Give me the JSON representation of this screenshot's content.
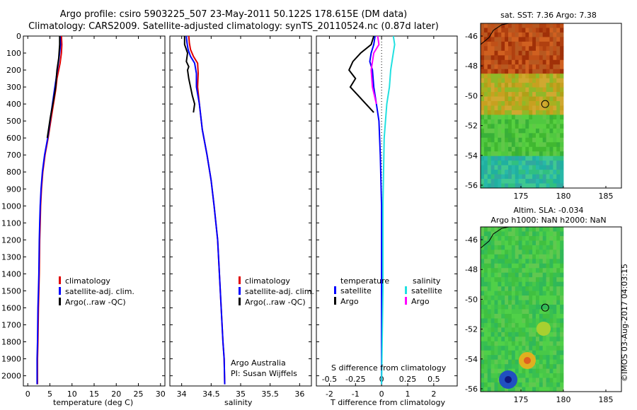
{
  "header": {
    "title_line1": "Argo profile: csiro 5903225_507 23-May-2011 50.122S 178.615E (DM data)",
    "title_line2": "Climatology: CARS2009. Satellite-adjusted climatology: synTS_20110524.nc (0.87d later)"
  },
  "colors": {
    "climatology": "#e00000",
    "satellite": "#0000ff",
    "argo": "#000000",
    "sat_salinity": "#20e0e0",
    "argo_salinity": "#ff00ff"
  },
  "depth_axis": {
    "ticks": [
      0,
      100,
      200,
      300,
      400,
      500,
      600,
      700,
      800,
      900,
      1000,
      1100,
      1200,
      1300,
      1400,
      1500,
      1600,
      1700,
      1800,
      1900,
      2000
    ],
    "max": 2060
  },
  "chart_data": [
    {
      "type": "line",
      "xlabel": "temperature (deg C)",
      "xlim": [
        -1,
        31
      ],
      "xticks": [
        0,
        5,
        10,
        15,
        20,
        25,
        30
      ],
      "ylim": [
        0,
        2060
      ],
      "legend": [
        "climatology",
        "satellite-adj. clim.",
        "Argo(..raw -QC)"
      ],
      "series": [
        {
          "name": "climatology",
          "color": "#e00000",
          "x": [
            7.6,
            7.7,
            7.6,
            7.3,
            6.6,
            6.3,
            5.5,
            4.6,
            3.9,
            3.4,
            3.1,
            2.9,
            2.8,
            2.7,
            2.6,
            2.5,
            2.4,
            2.3,
            2.2,
            2.2
          ],
          "y": [
            0,
            50,
            100,
            160,
            250,
            320,
            450,
            600,
            700,
            800,
            900,
            1000,
            1100,
            1200,
            1400,
            1500,
            1600,
            1800,
            1900,
            2050
          ]
        },
        {
          "name": "satellite-adj. clim.",
          "color": "#0000ff",
          "x": [
            7.3,
            7.4,
            7.2,
            6.9,
            6.4,
            6.0,
            5.3,
            4.5,
            3.8,
            3.3,
            3.0,
            2.8,
            2.7,
            2.6,
            2.5,
            2.4,
            2.3,
            2.2,
            2.1,
            2.1
          ],
          "y": [
            0,
            50,
            100,
            160,
            250,
            320,
            450,
            600,
            700,
            800,
            900,
            1000,
            1100,
            1200,
            1400,
            1500,
            1600,
            1800,
            1900,
            2050
          ]
        },
        {
          "name": "Argo(..raw -QC)",
          "color": "#000000",
          "x": [
            7.2,
            7.2,
            7.0,
            6.6,
            6.3,
            5.8,
            5.1,
            4.4
          ],
          "y": [
            0,
            50,
            130,
            200,
            300,
            380,
            480,
            600
          ]
        }
      ]
    },
    {
      "type": "line",
      "xlabel": "salinity",
      "xlim": [
        33.8,
        36.2
      ],
      "xticks": [
        34,
        34.5,
        35,
        35.5,
        36
      ],
      "ylim": [
        0,
        2060
      ],
      "legend": [
        "climatology",
        "satellite-adj. clim.",
        "Argo(..raw -QC)"
      ],
      "annotations": [
        "Argo Australia",
        "PI: Susan Wijffels"
      ],
      "series": [
        {
          "name": "climatology",
          "color": "#e00000",
          "x": [
            34.12,
            34.13,
            34.15,
            34.2,
            34.27,
            34.28,
            34.27,
            34.3,
            34.35,
            34.43,
            34.5,
            34.55,
            34.58,
            34.61,
            34.64,
            34.67,
            34.7,
            34.72,
            34.73
          ],
          "y": [
            0,
            40,
            80,
            120,
            160,
            220,
            300,
            400,
            550,
            700,
            850,
            1000,
            1100,
            1200,
            1400,
            1600,
            1800,
            1900,
            2050
          ]
        },
        {
          "name": "satellite-adj. clim.",
          "color": "#0000ff",
          "x": [
            34.08,
            34.09,
            34.11,
            34.15,
            34.22,
            34.25,
            34.25,
            34.3,
            34.35,
            34.43,
            34.5,
            34.55,
            34.58,
            34.61,
            34.64,
            34.67,
            34.7,
            34.72,
            34.73
          ],
          "y": [
            0,
            40,
            80,
            120,
            160,
            220,
            300,
            400,
            550,
            700,
            850,
            1000,
            1100,
            1200,
            1400,
            1600,
            1800,
            1900,
            2050
          ]
        },
        {
          "name": "Argo(..raw -QC)",
          "color": "#000000",
          "x": [
            34.05,
            34.05,
            34.1,
            34.08,
            34.12,
            34.1,
            34.12,
            34.15,
            34.18,
            34.22,
            34.2
          ],
          "y": [
            0,
            50,
            100,
            150,
            180,
            200,
            250,
            300,
            350,
            400,
            450
          ]
        }
      ]
    },
    {
      "type": "line",
      "xlabel": "T difference from climatology",
      "xlabel_top": "S difference from climatology",
      "xlim": [
        -2.5,
        2.9
      ],
      "xticks": [
        -2,
        -1,
        0,
        1,
        2
      ],
      "xticks_top": [
        "-0.5",
        "-0.25",
        "0",
        "0.25",
        "0.5"
      ],
      "ylim": [
        0,
        2060
      ],
      "legend_left_title": "temperature",
      "legend_right_title": "salinity",
      "legend": [
        "satellite",
        "Argo",
        "satellite",
        "Argo"
      ],
      "series": [
        {
          "name": "satellite",
          "color": "#0000ff",
          "x": [
            -0.25,
            -0.3,
            -0.4,
            -0.45,
            -0.35,
            -0.3,
            -0.2,
            -0.1,
            -0.05,
            0,
            0
          ],
          "y": [
            0,
            50,
            100,
            150,
            200,
            300,
            400,
            500,
            700,
            1000,
            2050
          ]
        },
        {
          "name": "Argo",
          "color": "#000000",
          "x": [
            -0.3,
            -0.4,
            -0.8,
            -1.1,
            -1.25,
            -1.0,
            -1.2,
            -0.9,
            -0.6,
            -0.3
          ],
          "y": [
            0,
            50,
            100,
            150,
            200,
            250,
            300,
            350,
            400,
            450
          ]
        },
        {
          "name": "satellite",
          "color": "#20e0e0",
          "x": [
            0.45,
            0.5,
            0.45,
            0.35,
            0.3,
            0.2,
            0.1,
            0.05,
            0.05,
            0
          ],
          "y": [
            0,
            50,
            100,
            200,
            300,
            400,
            600,
            1000,
            1500,
            2050
          ]
        },
        {
          "name": "Argo",
          "color": "#ff00ff",
          "x": [
            -0.15,
            -0.1,
            -0.3,
            -0.4,
            -0.35,
            -0.2
          ],
          "y": [
            0,
            50,
            100,
            200,
            300,
            400
          ]
        }
      ]
    }
  ],
  "maps": [
    {
      "title": "sat. SST: 7.36 Argo: 7.38",
      "xticks": [
        "175",
        "180",
        "185"
      ],
      "yticks": [
        "-46",
        "-48",
        "-50",
        "-52",
        "-54",
        "-56"
      ]
    },
    {
      "title_line1": "Altim. SLA: -0.034",
      "title_line2": "Argo h1000: NaN h2000: NaN",
      "xticks": [
        "175",
        "180",
        "185"
      ],
      "yticks": [
        "-46",
        "-48",
        "-50",
        "-52",
        "-54",
        "-56"
      ]
    }
  ],
  "stamp": "©IMOS 03-Aug-2017 04:03:15"
}
